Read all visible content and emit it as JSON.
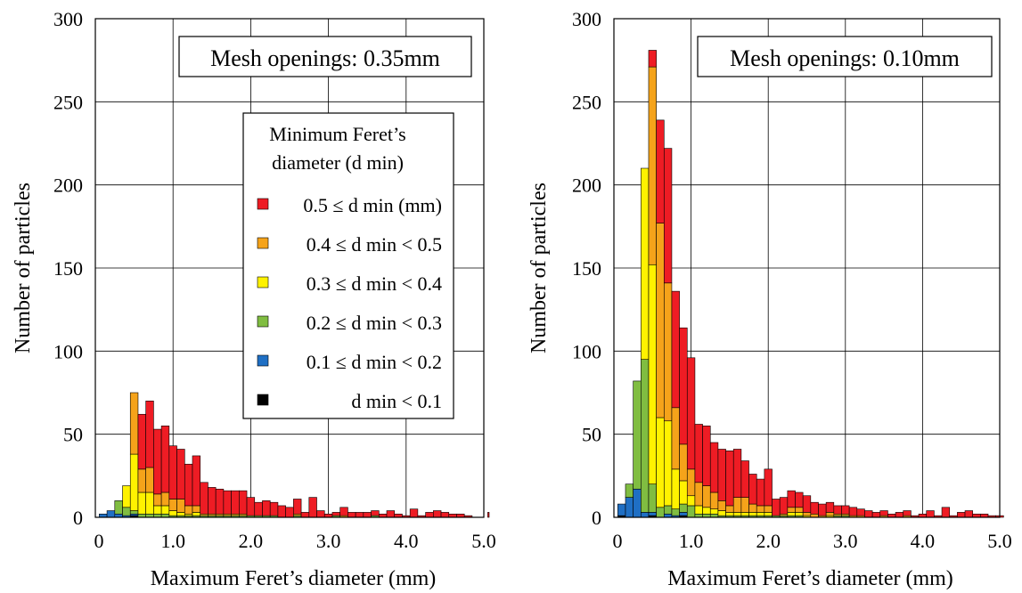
{
  "colors": {
    "ge_0_5": "#ee1c24",
    "r_0_4_0_5": "#f5a31a",
    "r_0_3_0_4": "#fff200",
    "r_0_2_0_3": "#80bd41",
    "r_0_1_0_2": "#1f6fc4",
    "lt_0_1": "#000000"
  },
  "legend": {
    "title_line1": "Minimum Feret’s",
    "title_line2": "diameter (d min)",
    "items": [
      {
        "key": "ge_0_5",
        "label": "0.5 ≤ d min (mm)"
      },
      {
        "key": "r_0_4_0_5",
        "label": "0.4 ≤ d min < 0.5"
      },
      {
        "key": "r_0_3_0_4",
        "label": "0.3 ≤ d min < 0.4"
      },
      {
        "key": "r_0_2_0_3",
        "label": "0.2 ≤ d min < 0.3"
      },
      {
        "key": "r_0_1_0_2",
        "label": "0.1 ≤ d min < 0.2"
      },
      {
        "key": "lt_0_1",
        "label": "d min < 0.1"
      }
    ]
  },
  "chart_data": [
    {
      "type": "bar",
      "stacked": true,
      "title": "Mesh openings: 0.35mm",
      "xlabel": "Maximum Feret’s diameter (mm)",
      "ylabel": "Number of particles",
      "xlim": [
        0,
        5.0
      ],
      "ylim": [
        0,
        300
      ],
      "xticks": [
        "0",
        "1.0",
        "2.0",
        "3.0",
        "4.0",
        "5.0"
      ],
      "yticks": [
        "0",
        "50",
        "100",
        "150",
        "200",
        "250",
        "300"
      ],
      "grid": true,
      "bin_width": 0.1,
      "series_order": [
        "lt_0_1",
        "r_0_1_0_2",
        "r_0_2_0_3",
        "r_0_3_0_4",
        "r_0_4_0_5",
        "ge_0_5"
      ],
      "bins": [
        {
          "x": 0.1,
          "r_0_1_0_2": 2
        },
        {
          "x": 0.2,
          "r_0_1_0_2": 4
        },
        {
          "x": 0.3,
          "r_0_1_0_2": 2,
          "r_0_2_0_3": 8
        },
        {
          "x": 0.4,
          "r_0_1_0_2": 1,
          "r_0_2_0_3": 5,
          "r_0_3_0_4": 13
        },
        {
          "x": 0.5,
          "lt_0_1": 1,
          "r_0_1_0_2": 1,
          "r_0_2_0_3": 2,
          "r_0_3_0_4": 34,
          "r_0_4_0_5": 37
        },
        {
          "x": 0.6,
          "r_0_2_0_3": 2,
          "r_0_3_0_4": 13,
          "r_0_4_0_5": 14,
          "ge_0_5": 33
        },
        {
          "x": 0.7,
          "r_0_2_0_3": 2,
          "r_0_3_0_4": 13,
          "r_0_4_0_5": 15,
          "ge_0_5": 40
        },
        {
          "x": 0.8,
          "r_0_2_0_3": 2,
          "r_0_3_0_4": 5,
          "r_0_4_0_5": 7,
          "ge_0_5": 39
        },
        {
          "x": 0.9,
          "r_0_2_0_3": 2,
          "r_0_3_0_4": 5,
          "r_0_4_0_5": 8,
          "ge_0_5": 40
        },
        {
          "x": 1.0,
          "r_0_2_0_3": 1,
          "r_0_3_0_4": 3,
          "r_0_4_0_5": 7,
          "ge_0_5": 32
        },
        {
          "x": 1.1,
          "r_0_2_0_3": 1,
          "r_0_3_0_4": 2,
          "r_0_4_0_5": 8,
          "ge_0_5": 30
        },
        {
          "x": 1.2,
          "r_0_2_0_3": 1,
          "r_0_3_0_4": 1,
          "r_0_4_0_5": 5,
          "ge_0_5": 25
        },
        {
          "x": 1.3,
          "r_0_2_0_3": 1,
          "r_0_3_0_4": 2,
          "r_0_4_0_5": 4,
          "ge_0_5": 30
        },
        {
          "x": 1.4,
          "r_0_2_0_3": 1,
          "r_0_4_0_5": 1,
          "ge_0_5": 19
        },
        {
          "x": 1.5,
          "r_0_2_0_3": 1,
          "r_0_4_0_5": 1,
          "ge_0_5": 16
        },
        {
          "x": 1.6,
          "r_0_2_0_3": 1,
          "r_0_4_0_5": 1,
          "ge_0_5": 15
        },
        {
          "x": 1.7,
          "r_0_2_0_3": 1,
          "r_0_4_0_5": 1,
          "ge_0_5": 14
        },
        {
          "x": 1.8,
          "r_0_2_0_3": 1,
          "r_0_4_0_5": 1,
          "ge_0_5": 14
        },
        {
          "x": 1.9,
          "r_0_2_0_3": 1,
          "r_0_4_0_5": 1,
          "ge_0_5": 14
        },
        {
          "x": 2.0,
          "r_0_2_0_3": 1,
          "ge_0_5": 11
        },
        {
          "x": 2.1,
          "r_0_2_0_3": 1,
          "ge_0_5": 8
        },
        {
          "x": 2.2,
          "r_0_2_0_3": 1,
          "ge_0_5": 9
        },
        {
          "x": 2.3,
          "r_0_2_0_3": 1,
          "ge_0_5": 8
        },
        {
          "x": 2.4,
          "ge_0_5": 7
        },
        {
          "x": 2.5,
          "ge_0_5": 6
        },
        {
          "x": 2.6,
          "r_0_2_0_3": 1,
          "r_0_4_0_5": 1,
          "ge_0_5": 9
        },
        {
          "x": 2.7,
          "ge_0_5": 3
        },
        {
          "x": 2.8,
          "ge_0_5": 12
        },
        {
          "x": 2.9,
          "ge_0_5": 4
        },
        {
          "x": 3.0,
          "ge_0_5": 2
        },
        {
          "x": 3.1,
          "r_0_2_0_3": 1,
          "ge_0_5": 2
        },
        {
          "x": 3.2,
          "r_0_4_0_5": 1,
          "ge_0_5": 5
        },
        {
          "x": 3.3,
          "ge_0_5": 3
        },
        {
          "x": 3.4,
          "ge_0_5": 3
        },
        {
          "x": 3.5,
          "ge_0_5": 3
        },
        {
          "x": 3.6,
          "r_0_2_0_3": 1,
          "ge_0_5": 3
        },
        {
          "x": 3.7,
          "ge_0_5": 2
        },
        {
          "x": 3.8,
          "ge_0_5": 4
        },
        {
          "x": 3.9,
          "ge_0_5": 2
        },
        {
          "x": 4.0,
          "ge_0_5": 1
        },
        {
          "x": 4.1,
          "ge_0_5": 5
        },
        {
          "x": 4.2,
          "ge_0_5": 1
        },
        {
          "x": 4.3,
          "ge_0_5": 3
        },
        {
          "x": 4.4,
          "ge_0_5": 4
        },
        {
          "x": 4.5,
          "ge_0_5": 3
        },
        {
          "x": 4.6,
          "ge_0_5": 2
        },
        {
          "x": 4.7,
          "ge_0_5": 2
        },
        {
          "x": 4.8,
          "ge_0_5": 1
        },
        {
          "x": 5.1,
          "ge_0_5": 3
        }
      ]
    },
    {
      "type": "bar",
      "stacked": true,
      "title": "Mesh openings: 0.10mm",
      "xlabel": "Maximum Feret’s diameter (mm)",
      "ylabel": "Number of particles",
      "xlim": [
        0,
        5.0
      ],
      "ylim": [
        0,
        300
      ],
      "xticks": [
        "0",
        "1.0",
        "2.0",
        "3.0",
        "4.0",
        "5.0"
      ],
      "yticks": [
        "0",
        "50",
        "100",
        "150",
        "200",
        "250",
        "300"
      ],
      "grid": true,
      "bin_width": 0.1,
      "series_order": [
        "lt_0_1",
        "r_0_1_0_2",
        "r_0_2_0_3",
        "r_0_3_0_4",
        "r_0_4_0_5",
        "ge_0_5"
      ],
      "bins": [
        {
          "x": 0.1,
          "lt_0_1": 1,
          "r_0_1_0_2": 7
        },
        {
          "x": 0.2,
          "r_0_1_0_2": 12,
          "r_0_2_0_3": 8
        },
        {
          "x": 0.3,
          "r_0_1_0_2": 17,
          "r_0_2_0_3": 65
        },
        {
          "x": 0.4,
          "r_0_1_0_2": 3,
          "r_0_2_0_3": 92,
          "r_0_3_0_4": 115
        },
        {
          "x": 0.5,
          "lt_0_1": 1,
          "r_0_1_0_2": 2,
          "r_0_2_0_3": 17,
          "r_0_3_0_4": 132,
          "r_0_4_0_5": 119,
          "ge_0_5": 10
        },
        {
          "x": 0.6,
          "r_0_2_0_3": 6,
          "r_0_3_0_4": 54,
          "r_0_4_0_5": 117,
          "ge_0_5": 62
        },
        {
          "x": 0.7,
          "r_0_1_0_2": 2,
          "r_0_2_0_3": 5,
          "r_0_3_0_4": 51,
          "r_0_4_0_5": 83,
          "ge_0_5": 81
        },
        {
          "x": 0.8,
          "r_0_1_0_2": 1,
          "r_0_2_0_3": 4,
          "r_0_3_0_4": 24,
          "r_0_4_0_5": 37,
          "ge_0_5": 70
        },
        {
          "x": 0.9,
          "lt_0_1": 1,
          "r_0_1_0_2": 2,
          "r_0_2_0_3": 5,
          "r_0_3_0_4": 14,
          "r_0_4_0_5": 22,
          "ge_0_5": 70
        },
        {
          "x": 1.0,
          "r_0_2_0_3": 7,
          "r_0_3_0_4": 6,
          "r_0_4_0_5": 16,
          "ge_0_5": 67
        },
        {
          "x": 1.1,
          "r_0_2_0_3": 2,
          "r_0_3_0_4": 5,
          "r_0_4_0_5": 14,
          "ge_0_5": 35
        },
        {
          "x": 1.2,
          "r_0_2_0_3": 2,
          "r_0_3_0_4": 4,
          "r_0_4_0_5": 13,
          "ge_0_5": 36
        },
        {
          "x": 1.3,
          "r_0_2_0_3": 2,
          "r_0_3_0_4": 3,
          "r_0_4_0_5": 10,
          "ge_0_5": 30
        },
        {
          "x": 1.4,
          "r_0_2_0_3": 1,
          "r_0_3_0_4": 3,
          "r_0_4_0_5": 6,
          "ge_0_5": 31
        },
        {
          "x": 1.5,
          "r_0_2_0_3": 1,
          "r_0_3_0_4": 2,
          "r_0_4_0_5": 4,
          "ge_0_5": 33
        },
        {
          "x": 1.6,
          "r_0_2_0_3": 1,
          "r_0_3_0_4": 2,
          "r_0_4_0_5": 9,
          "ge_0_5": 29
        },
        {
          "x": 1.7,
          "r_0_2_0_3": 1,
          "r_0_3_0_4": 2,
          "r_0_4_0_5": 9,
          "ge_0_5": 22
        },
        {
          "x": 1.8,
          "r_0_2_0_3": 1,
          "r_0_3_0_4": 2,
          "r_0_4_0_5": 5,
          "ge_0_5": 18
        },
        {
          "x": 1.9,
          "r_0_2_0_3": 1,
          "r_0_3_0_4": 2,
          "r_0_4_0_5": 4,
          "ge_0_5": 16
        },
        {
          "x": 2.0,
          "r_0_2_0_3": 1,
          "r_0_3_0_4": 2,
          "r_0_4_0_5": 4,
          "ge_0_5": 22
        },
        {
          "x": 2.1,
          "r_0_2_0_3": 1,
          "ge_0_5": 10
        },
        {
          "x": 2.2,
          "r_0_2_0_3": 1,
          "r_0_4_0_5": 1,
          "ge_0_5": 10
        },
        {
          "x": 2.3,
          "r_0_2_0_3": 1,
          "r_0_3_0_4": 2,
          "r_0_4_0_5": 3,
          "ge_0_5": 10
        },
        {
          "x": 2.4,
          "r_0_2_0_3": 1,
          "r_0_3_0_4": 2,
          "r_0_4_0_5": 3,
          "ge_0_5": 9
        },
        {
          "x": 2.5,
          "r_0_3_0_4": 1,
          "r_0_4_0_5": 2,
          "ge_0_5": 10
        },
        {
          "x": 2.6,
          "r_0_4_0_5": 2,
          "ge_0_5": 7
        },
        {
          "x": 2.7,
          "r_0_4_0_5": 1,
          "ge_0_5": 7
        },
        {
          "x": 2.8,
          "r_0_3_0_4": 1,
          "r_0_4_0_5": 2,
          "ge_0_5": 6
        },
        {
          "x": 2.9,
          "r_0_2_0_3": 1,
          "r_0_4_0_5": 1,
          "ge_0_5": 5
        },
        {
          "x": 3.0,
          "r_0_2_0_3": 1,
          "r_0_4_0_5": 1,
          "ge_0_5": 5
        },
        {
          "x": 3.1,
          "r_0_4_0_5": 1,
          "ge_0_5": 5
        },
        {
          "x": 3.2,
          "r_0_4_0_5": 1,
          "ge_0_5": 4
        },
        {
          "x": 3.3,
          "ge_0_5": 4
        },
        {
          "x": 3.4,
          "ge_0_5": 3
        },
        {
          "x": 3.5,
          "r_0_4_0_5": 1,
          "ge_0_5": 3
        },
        {
          "x": 3.6,
          "ge_0_5": 2
        },
        {
          "x": 3.7,
          "ge_0_5": 3
        },
        {
          "x": 3.8,
          "r_0_4_0_5": 1,
          "ge_0_5": 3
        },
        {
          "x": 3.9,
          "ge_0_5": 1
        },
        {
          "x": 4.0,
          "ge_0_5": 2
        },
        {
          "x": 4.1,
          "ge_0_5": 4
        },
        {
          "x": 4.2,
          "ge_0_5": 1
        },
        {
          "x": 4.3,
          "ge_0_5": 6
        },
        {
          "x": 4.4,
          "ge_0_5": 1
        },
        {
          "x": 4.5,
          "ge_0_5": 3
        },
        {
          "x": 4.6,
          "ge_0_5": 4
        },
        {
          "x": 4.7,
          "ge_0_5": 2
        },
        {
          "x": 4.8,
          "ge_0_5": 2
        },
        {
          "x": 4.9,
          "ge_0_5": 1
        },
        {
          "x": 5.0,
          "ge_0_5": 1
        }
      ]
    }
  ]
}
